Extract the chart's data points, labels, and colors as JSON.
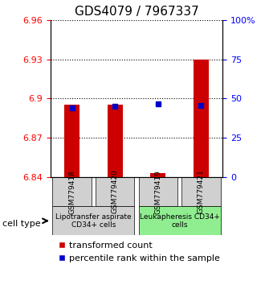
{
  "title": "GDS4079 / 7967337",
  "samples": [
    "GSM779418",
    "GSM779420",
    "GSM779419",
    "GSM779421"
  ],
  "transformed_counts": [
    6.895,
    6.895,
    6.843,
    6.93
  ],
  "percentile_ranks": [
    44.0,
    45.0,
    46.5,
    45.5
  ],
  "ylim_left": [
    6.84,
    6.96
  ],
  "ylim_right": [
    0,
    100
  ],
  "yticks_left": [
    6.84,
    6.87,
    6.9,
    6.93,
    6.96
  ],
  "yticks_right": [
    0,
    25,
    50,
    75,
    100
  ],
  "ytick_labels_left": [
    "6.84",
    "6.87",
    "6.9",
    "6.93",
    "6.96"
  ],
  "ytick_labels_right": [
    "0",
    "25",
    "50",
    "75",
    "100%"
  ],
  "bar_color": "#cc0000",
  "dot_color": "#0000cc",
  "base_value": 6.84,
  "cell_groups": [
    {
      "label": "Lipotransfer aspirate\nCD34+ cells",
      "samples": [
        0,
        1
      ],
      "color": "#d0d0d0"
    },
    {
      "label": "Leukapheresis CD34+\ncells",
      "samples": [
        2,
        3
      ],
      "color": "#90ee90"
    }
  ],
  "legend_bar_label": "transformed count",
  "legend_dot_label": "percentile rank within the sample",
  "cell_type_label": "cell type",
  "title_fontsize": 11,
  "tick_fontsize": 8,
  "legend_fontsize": 8,
  "sample_name_fontsize": 6.5,
  "group_label_fontsize": 6.5
}
